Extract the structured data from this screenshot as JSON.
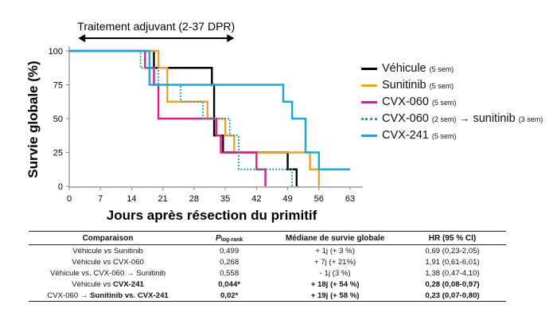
{
  "chart_data": {
    "type": "line",
    "step": true,
    "annotation": "Traitement adjuvant (2-37 DPR)",
    "annotation_range": [
      2,
      37
    ],
    "xlabel": "Jours après résection du primitif",
    "ylabel": "Survie globale (%)",
    "xlim": [
      0,
      63
    ],
    "ylim": [
      0,
      100
    ],
    "xticks": [
      0,
      7,
      14,
      21,
      28,
      35,
      42,
      49,
      56,
      63
    ],
    "yticks": [
      0,
      25,
      50,
      75,
      100
    ],
    "series": [
      {
        "name": "Véhicule",
        "regimen": "(5 sem)",
        "color": "#000000",
        "style": "solid",
        "x": [
          0,
          19,
          32,
          32.5,
          34.5,
          49,
          51
        ],
        "y": [
          100,
          87.5,
          75,
          37.5,
          25,
          12.5,
          0
        ]
      },
      {
        "name": "Sunitinib",
        "regimen": "(5 sem)",
        "color": "#F0A030",
        "style": "solid",
        "x": [
          0,
          20,
          22,
          31,
          35,
          37,
          50,
          54,
          56
        ],
        "y": [
          100,
          87.5,
          62.5,
          50,
          37.5,
          25,
          25,
          12.5,
          0
        ]
      },
      {
        "name": "CVX-060",
        "regimen": "(5 sem)",
        "color": "#D8208A",
        "style": "solid",
        "x": [
          0,
          17,
          19,
          20,
          33,
          34,
          42,
          44
        ],
        "y": [
          100,
          87.5,
          75,
          50,
          37.5,
          25,
          12.5,
          0
        ]
      },
      {
        "name": "CVX-060",
        "regimen": "(2 sem)",
        "arrow": "→",
        "name2": "sunitinib",
        "regimen2": "(3 sem)",
        "color": "#2EA094",
        "style": "dotted",
        "x": [
          0,
          16,
          20,
          25,
          30,
          36,
          38,
          49,
          50
        ],
        "y": [
          100,
          87.5,
          75,
          62.5,
          50,
          37.5,
          12.5,
          12.5,
          0
        ]
      },
      {
        "name": "CVX-241",
        "regimen": "(5 sem)",
        "color": "#1BA7DC",
        "style": "solid",
        "x": [
          0,
          18,
          48,
          50,
          53,
          56,
          63
        ],
        "y": [
          100,
          75,
          62.5,
          50,
          25,
          12.5,
          12.5
        ]
      }
    ]
  },
  "table": {
    "headers": {
      "c1": "Comparaison",
      "c2_main": "P",
      "c2_sub": "log-rank",
      "c3": "Médiane de survie globale",
      "c4": "HR (95 % CI)"
    },
    "rows": [
      {
        "a": "Véhicule",
        "vs": "vs",
        "b": "Sunitinib",
        "p": "0,499",
        "median": "+ 1j (+ 3 %)",
        "hr": "0,69 (0,23-2,05)",
        "bold": false
      },
      {
        "a": "Véhicule",
        "vs": "vs",
        "b": "CVX-060",
        "p": "0,268",
        "median": "+ 7j (+ 21%)",
        "hr": "1,91 (0,61-6,01)",
        "bold": false
      },
      {
        "a": "Véhicule vs. CVX-060",
        "vs": "→",
        "b": "Sunitinib",
        "p": "0,558",
        "median": "- 1j (3 %)",
        "hr": "1,38 (0,47-4,10)",
        "bold": false
      },
      {
        "a": "Véhicule",
        "vs": "vs",
        "b": "CVX-241",
        "p": "0,044*",
        "median": "+ 18j (+ 54 %)",
        "hr": "0,28 (0,08-0,97)",
        "bold": true
      },
      {
        "a": "CVX-060",
        "vs": "→",
        "b": "Sunitinib vs. CVX-241",
        "p": "0,02*",
        "median": "+ 19j (+ 58 %)",
        "hr": "0,23 (0,07-0,80)",
        "bold": true
      }
    ]
  }
}
